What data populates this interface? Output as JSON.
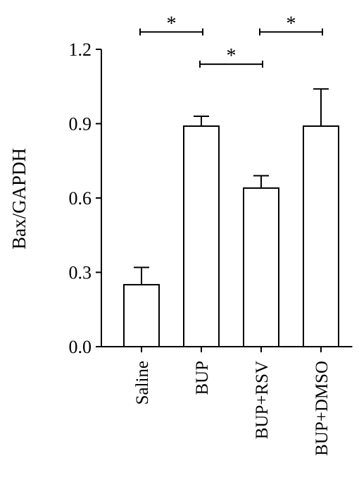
{
  "chart_data": {
    "type": "bar",
    "title": "",
    "xlabel": "",
    "ylabel": "Bax/GAPDH",
    "categories": [
      "Saline",
      "BUP",
      "BUP+RSV",
      "BUP+DMSO"
    ],
    "values": [
      0.25,
      0.89,
      0.64,
      0.89
    ],
    "error_upper": [
      0.32,
      0.93,
      0.69,
      1.04
    ],
    "ylim": [
      0,
      1.2
    ],
    "yticks": [
      0.0,
      0.3,
      0.6,
      0.9,
      1.2
    ],
    "ytick_labels": [
      "0.0",
      "0.3",
      "0.6",
      "0.9",
      "1.2"
    ],
    "grid": false,
    "legend": "none",
    "bar_fill": "#ffffff",
    "bar_edge": "#000000",
    "significance": [
      {
        "from": 0,
        "to": 1,
        "label": "*",
        "level": 1.27
      },
      {
        "from": 1,
        "to": 2,
        "label": "*",
        "level": 1.14
      },
      {
        "from": 2,
        "to": 3,
        "label": "*",
        "level": 1.27
      }
    ]
  }
}
